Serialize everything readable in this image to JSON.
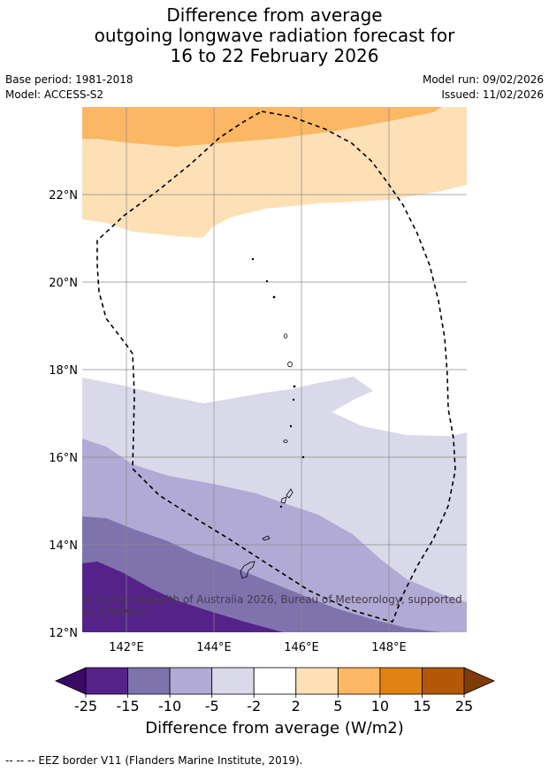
{
  "title": {
    "line1": "Difference from average",
    "line2": "outgoing longwave radiation forecast for",
    "line3": "16 to 22 February 2026"
  },
  "meta": {
    "base_period": "Base period: 1981-2018",
    "model": "Model: ACCESS-S2",
    "model_run": "Model run: 09/02/2026",
    "issued": "Issued: 11/02/2026"
  },
  "map": {
    "lat_labels": [
      "22°N",
      "20°N",
      "18°N",
      "16°N",
      "14°N",
      "12°N"
    ],
    "lon_labels": [
      "142°E",
      "144°E",
      "146°E",
      "148°E"
    ],
    "copyright": "© Commonwealth of Australia 2026, Bureau of Meteorology, supported by COSPPac"
  },
  "colorbar": {
    "ticks": [
      "-25",
      "-15",
      "-10",
      "-5",
      "-2",
      "2",
      "5",
      "10",
      "15",
      "25"
    ],
    "colors": [
      "#3b0a66",
      "#55228a",
      "#7f73ae",
      "#b0aad4",
      "#d9d9ea",
      "#ffffff",
      "#fde0b6",
      "#fbb763",
      "#e08214",
      "#b35806",
      "#7f3b08"
    ],
    "label": "Difference from average (W/m2)"
  },
  "footnote": "--  --  -- EEZ border V11 (Flanders Marine Institute, 2019)."
}
